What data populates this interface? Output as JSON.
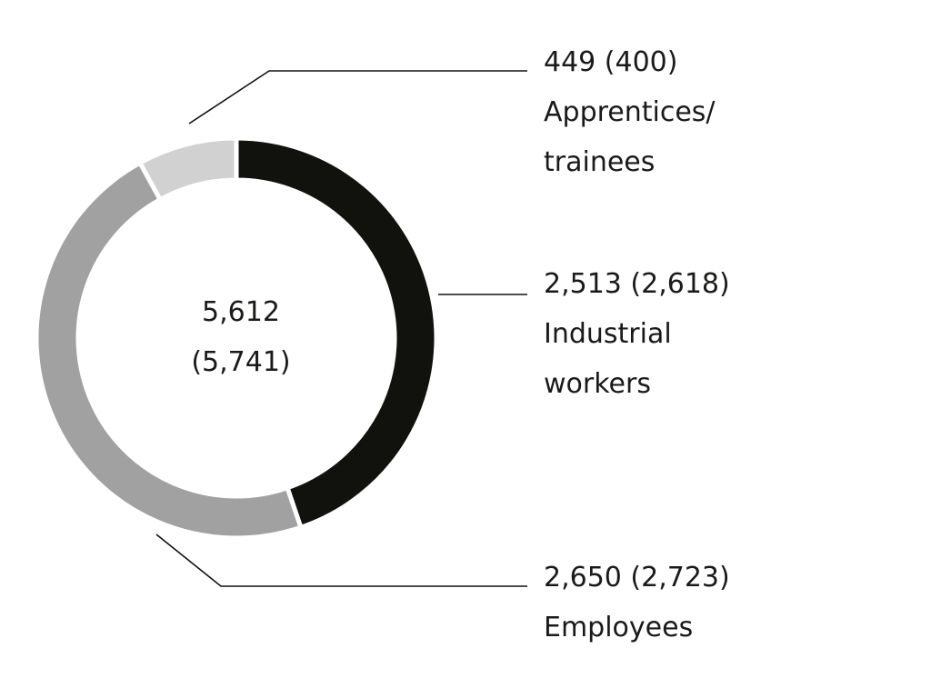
{
  "chart_data": {
    "type": "pie",
    "total": {
      "value": "5,612",
      "prior": "(5,741)"
    },
    "slices": [
      {
        "name": "Industrial workers",
        "label_lines": [
          "Industrial",
          "workers"
        ],
        "value": 2513,
        "value_text": "2,513 (2,618)",
        "prior": 2618,
        "color": "#11110e"
      },
      {
        "name": "Employees",
        "label_lines": [
          "Employees"
        ],
        "value": 2650,
        "value_text": "2,650 (2,723)",
        "prior": 2723,
        "color": "#a0a1a0"
      },
      {
        "name": "Apprentices/trainees",
        "label_lines": [
          "Apprentices/",
          "trainees"
        ],
        "value": 449,
        "value_text": "449 (400)",
        "prior": 400,
        "color": "#d0d1d0"
      }
    ]
  }
}
